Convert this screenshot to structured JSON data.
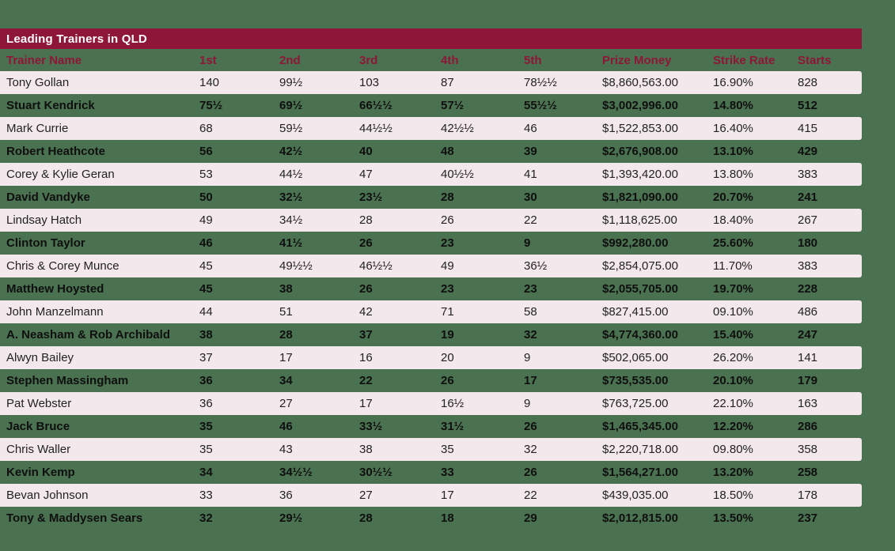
{
  "colors": {
    "page_background": "#4a7150",
    "title_bar_background": "#8e1638",
    "title_text": "#ffffff",
    "header_text": "#8e1638",
    "row_light_background": "#f3e9ed",
    "row_light_text": "#222222",
    "row_dark_text": "#0f0f0f"
  },
  "chart_data": {
    "type": "table",
    "title": "Leading Trainers in QLD",
    "columns": [
      "Trainer Name",
      "1st",
      "2nd",
      "3rd",
      "4th",
      "5th",
      "Prize Money",
      "Strike Rate",
      "Starts"
    ],
    "rows": [
      [
        "Tony Gollan",
        "140",
        "99½",
        "103",
        "87",
        "78½½",
        "$8,860,563.00",
        "16.90%",
        "828"
      ],
      [
        "Stuart Kendrick",
        "75½",
        "69½",
        "66½½",
        "57½",
        "55½½",
        "$3,002,996.00",
        "14.80%",
        "512"
      ],
      [
        "Mark Currie",
        "68",
        "59½",
        "44½½",
        "42½½",
        "46",
        "$1,522,853.00",
        "16.40%",
        "415"
      ],
      [
        "Robert Heathcote",
        "56",
        "42½",
        "40",
        "48",
        "39",
        "$2,676,908.00",
        "13.10%",
        "429"
      ],
      [
        "Corey & Kylie Geran",
        "53",
        "44½",
        "47",
        "40½½",
        "41",
        "$1,393,420.00",
        "13.80%",
        "383"
      ],
      [
        "David Vandyke",
        "50",
        "32½",
        "23½",
        "28",
        "30",
        "$1,821,090.00",
        "20.70%",
        "241"
      ],
      [
        "Lindsay Hatch",
        "49",
        "34½",
        "28",
        "26",
        "22",
        "$1,118,625.00",
        "18.40%",
        "267"
      ],
      [
        "Clinton Taylor",
        "46",
        "41½",
        "26",
        "23",
        "9",
        "$992,280.00",
        "25.60%",
        "180"
      ],
      [
        "Chris & Corey Munce",
        "45",
        "49½½",
        "46½½",
        "49",
        "36½",
        "$2,854,075.00",
        "11.70%",
        "383"
      ],
      [
        "Matthew Hoysted",
        "45",
        "38",
        "26",
        "23",
        "23",
        "$2,055,705.00",
        "19.70%",
        "228"
      ],
      [
        "John Manzelmann",
        "44",
        "51",
        "42",
        "71",
        "58",
        "$827,415.00",
        "09.10%",
        "486"
      ],
      [
        "A. Neasham & Rob Archibald",
        "38",
        "28",
        "37",
        "19",
        "32",
        "$4,774,360.00",
        "15.40%",
        "247"
      ],
      [
        "Alwyn Bailey",
        "37",
        "17",
        "16",
        "20",
        "9",
        "$502,065.00",
        "26.20%",
        "141"
      ],
      [
        "Stephen Massingham",
        "36",
        "34",
        "22",
        "26",
        "17",
        "$735,535.00",
        "20.10%",
        "179"
      ],
      [
        "Pat Webster",
        "36",
        "27",
        "17",
        "16½",
        "9",
        "$763,725.00",
        "22.10%",
        "163"
      ],
      [
        "Jack Bruce",
        "35",
        "46",
        "33½",
        "31½",
        "26",
        "$1,465,345.00",
        "12.20%",
        "286"
      ],
      [
        "Chris Waller",
        "35",
        "43",
        "38",
        "35",
        "32",
        "$2,220,718.00",
        "09.80%",
        "358"
      ],
      [
        "Kevin Kemp",
        "34",
        "34½½",
        "30½½",
        "33",
        "26",
        "$1,564,271.00",
        "13.20%",
        "258"
      ],
      [
        "Bevan Johnson",
        "33",
        "36",
        "27",
        "17",
        "22",
        "$439,035.00",
        "18.50%",
        "178"
      ],
      [
        "Tony & Maddysen Sears",
        "32",
        "29½",
        "28",
        "18",
        "29",
        "$2,012,815.00",
        "13.50%",
        "237"
      ]
    ]
  }
}
